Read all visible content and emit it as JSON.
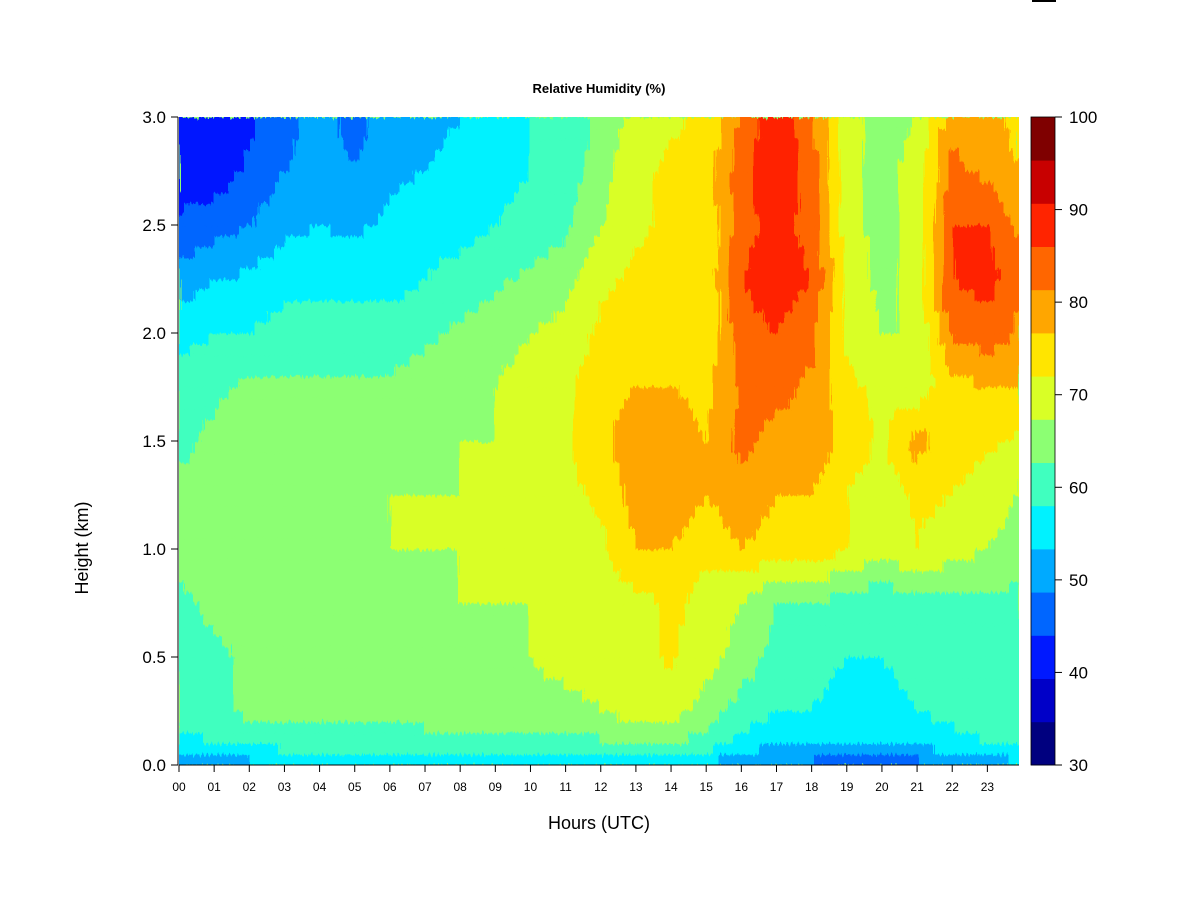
{
  "chart_data": {
    "type": "heatmap",
    "title": "Relative Humidity (%)",
    "xlabel": "Hours (UTC)",
    "ylabel": "Height (km)",
    "xlim": [
      0,
      23.9
    ],
    "ylim": [
      0.0,
      3.0
    ],
    "x_ticks": [
      "00",
      "01",
      "02",
      "03",
      "04",
      "05",
      "06",
      "07",
      "08",
      "09",
      "10",
      "11",
      "12",
      "13",
      "14",
      "15",
      "16",
      "17",
      "18",
      "19",
      "20",
      "21",
      "22",
      "23"
    ],
    "y_ticks": [
      "0.0",
      "0.5",
      "1.0",
      "1.5",
      "2.0",
      "2.5",
      "3.0"
    ],
    "colorbar": {
      "min": 30,
      "max": 100,
      "step": 5,
      "tick_labels": [
        "30",
        "40",
        "50",
        "60",
        "70",
        "80",
        "90",
        "100"
      ],
      "colors": [
        "#00007f",
        "#0000c8",
        "#0019ff",
        "#0066ff",
        "#00aaff",
        "#00f2ff",
        "#40ffbf",
        "#8cff73",
        "#d9ff26",
        "#ffe500",
        "#ffa600",
        "#ff6600",
        "#ff2400",
        "#c80000",
        "#7f0000"
      ]
    },
    "heights_km": [
      0.0,
      0.1,
      0.25,
      0.5,
      0.75,
      1.0,
      1.25,
      1.5,
      1.75,
      2.0,
      2.25,
      2.5,
      2.75,
      3.0
    ],
    "hours": [
      0,
      1,
      2,
      3,
      4,
      5,
      6,
      7,
      8,
      9,
      10,
      11,
      12,
      13,
      14,
      15,
      16,
      17,
      18,
      19,
      20,
      21,
      22,
      23,
      23.9
    ],
    "rh_percent": [
      [
        52,
        53,
        53,
        55,
        54,
        55,
        55,
        54,
        55,
        55,
        55,
        56,
        56,
        57,
        56,
        55,
        50,
        48,
        48,
        47,
        47,
        48,
        50,
        52,
        54
      ],
      [
        58,
        60,
        61,
        62,
        62,
        62,
        62,
        62,
        62,
        63,
        63,
        63,
        64,
        65,
        65,
        63,
        58,
        56,
        56,
        55,
        55,
        56,
        58,
        60,
        60
      ],
      [
        62,
        64,
        66,
        67,
        68,
        67,
        67,
        68,
        68,
        68,
        69,
        69,
        70,
        72,
        72,
        68,
        63,
        60,
        60,
        58,
        58,
        60,
        62,
        63,
        62
      ],
      [
        63,
        64,
        66,
        68,
        68,
        67,
        68,
        68,
        69,
        69,
        70,
        71,
        71,
        73,
        76,
        72,
        68,
        63,
        62,
        60,
        60,
        62,
        63,
        63,
        62
      ],
      [
        64,
        66,
        66,
        68,
        68,
        68,
        68,
        69,
        70,
        70,
        70,
        71,
        72,
        73,
        76,
        73,
        70,
        65,
        65,
        62,
        61,
        63,
        64,
        64,
        63
      ],
      [
        66,
        68,
        69,
        69,
        70,
        70,
        70,
        70,
        70,
        71,
        71,
        72,
        74,
        80,
        80,
        76,
        80,
        77,
        78,
        75,
        72,
        75,
        72,
        70,
        68
      ],
      [
        66,
        67,
        68,
        69,
        70,
        69,
        70,
        70,
        70,
        71,
        72,
        74,
        76,
        82,
        84,
        80,
        84,
        80,
        80,
        75,
        72,
        76,
        75,
        72,
        70
      ],
      [
        64,
        66,
        68,
        68,
        68,
        68,
        68,
        69,
        70,
        70,
        72,
        74,
        78,
        84,
        84,
        80,
        86,
        84,
        84,
        78,
        74,
        82,
        78,
        76,
        74
      ],
      [
        63,
        64,
        66,
        66,
        66,
        66,
        66,
        68,
        68,
        70,
        72,
        74,
        78,
        80,
        80,
        78,
        86,
        86,
        84,
        76,
        74,
        72,
        78,
        80,
        80
      ],
      [
        58,
        60,
        60,
        62,
        62,
        62,
        62,
        64,
        66,
        68,
        70,
        72,
        76,
        78,
        78,
        76,
        88,
        90,
        86,
        74,
        70,
        70,
        86,
        88,
        84
      ],
      [
        52,
        55,
        56,
        58,
        58,
        58,
        58,
        60,
        62,
        64,
        66,
        68,
        74,
        76,
        78,
        76,
        90,
        93,
        90,
        74,
        68,
        72,
        90,
        92,
        86
      ],
      [
        46,
        48,
        50,
        54,
        55,
        54,
        56,
        58,
        58,
        60,
        62,
        64,
        70,
        74,
        76,
        76,
        88,
        92,
        88,
        72,
        68,
        72,
        90,
        90,
        84
      ],
      [
        42,
        42,
        46,
        50,
        52,
        50,
        54,
        55,
        56,
        58,
        60,
        62,
        68,
        74,
        76,
        78,
        88,
        95,
        88,
        72,
        68,
        72,
        86,
        84,
        80
      ],
      [
        40,
        40,
        44,
        48,
        52,
        48,
        52,
        54,
        55,
        57,
        60,
        62,
        66,
        72,
        74,
        76,
        86,
        94,
        86,
        72,
        68,
        70,
        84,
        82,
        78
      ]
    ]
  }
}
